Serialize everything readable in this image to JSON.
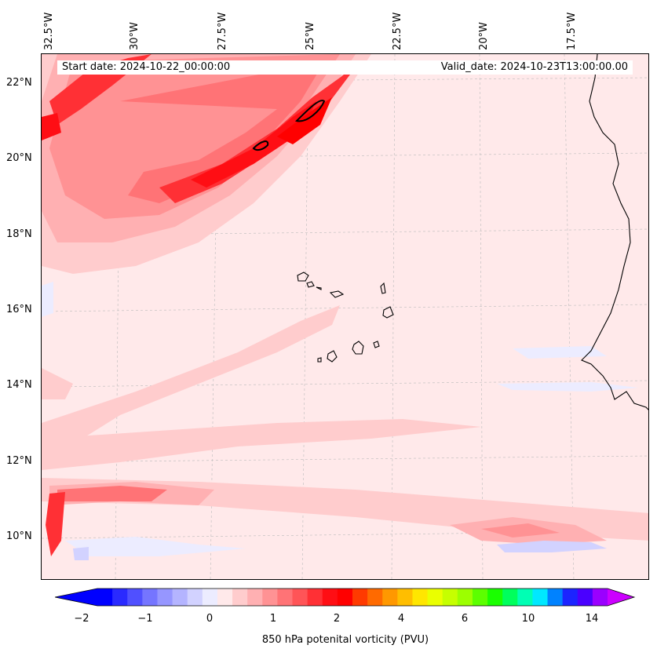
{
  "map": {
    "start_date": "Start date: 2024-10-22_00:00:00",
    "valid_date": "Valid_date: 2024-10-23T13:00:00.00",
    "lon_labels": [
      "32.5°W",
      "30°W",
      "27.5°W",
      "25°W",
      "22.5°W",
      "20°W",
      "17.5°W"
    ],
    "lat_labels": [
      "22°N",
      "20°N",
      "18°N",
      "16°N",
      "14°N",
      "12°N",
      "10°N"
    ],
    "features": [
      "Cape Verde islands",
      "West African coastline"
    ]
  },
  "colorbar": {
    "label": "850 hPa potenital vorticity (PVU)",
    "ticks": [
      "−2",
      "−1",
      "0",
      "1",
      "2",
      "4",
      "6",
      "10",
      "14"
    ],
    "colors": [
      "#0000ff",
      "#2a2aff",
      "#5050ff",
      "#7575ff",
      "#9696ff",
      "#b4b4ff",
      "#d2d2ff",
      "#ececff",
      "#ffe9ea",
      "#ffcccd",
      "#ffb0b2",
      "#ff9294",
      "#ff7376",
      "#ff5457",
      "#ff3035",
      "#ff0e14",
      "#ff0000",
      "#ff3a00",
      "#ff6a00",
      "#ff9800",
      "#ffbe00",
      "#ffe600",
      "#eaff00",
      "#c6ff00",
      "#9cff00",
      "#5cff00",
      "#1aff00",
      "#00ff5c",
      "#00ffb4",
      "#00e8ff",
      "#0082ff",
      "#1c24ff",
      "#4a00ff",
      "#9a00ff"
    ],
    "extend_low": "#0000ff",
    "extend_high": "#cc00ff"
  }
}
